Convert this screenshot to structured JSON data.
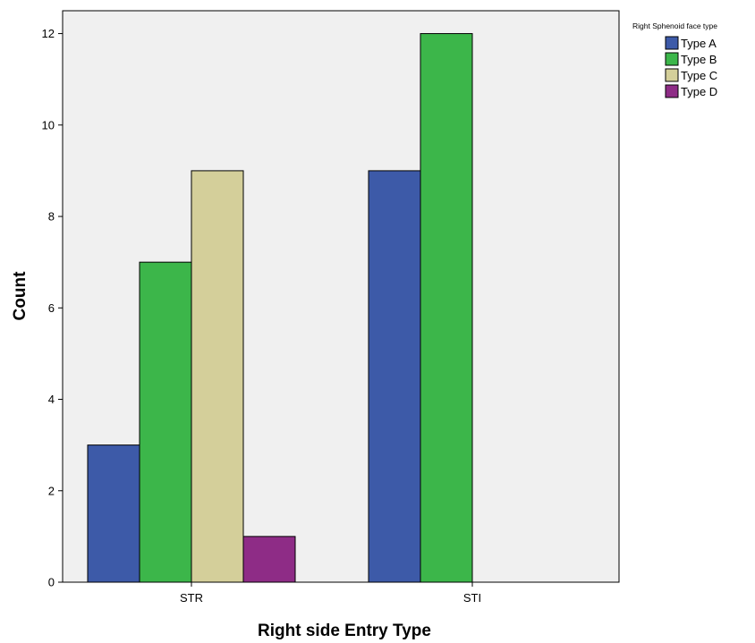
{
  "chart_data": {
    "type": "bar",
    "xlabel": "Right side Entry Type",
    "ylabel": "Count",
    "categories": [
      "STR",
      "STI"
    ],
    "ylim": [
      0,
      12.5
    ],
    "yticks": [
      0,
      2,
      4,
      6,
      8,
      10,
      12
    ],
    "grid": false,
    "legend": {
      "title": "Right Sphenoid face type",
      "placement": "top-right, outside plot"
    },
    "series": [
      {
        "name": "Type A",
        "color": "#3d5aa8",
        "values": [
          3,
          9
        ]
      },
      {
        "name": "Type B",
        "color": "#3cb64a",
        "values": [
          7,
          12
        ]
      },
      {
        "name": "Type C",
        "color": "#d4cf9a",
        "values": [
          9,
          null
        ]
      },
      {
        "name": "Type D",
        "color": "#8e2c86",
        "values": [
          1,
          null
        ]
      }
    ],
    "plot_background": "#f0f0f0"
  }
}
